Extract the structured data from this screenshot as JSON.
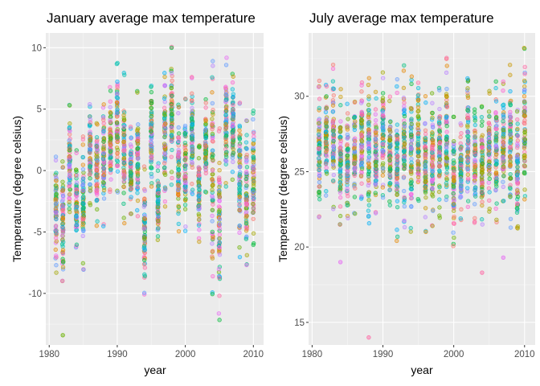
{
  "chart_data": [
    {
      "type": "scatter",
      "title": "January average max temperature",
      "xlabel": "year",
      "ylabel": "Temperature (degree celsius)",
      "xlim": [
        1979.5,
        2011.5
      ],
      "ylim": [
        -14.2,
        11.2
      ],
      "x_ticks": [
        1980,
        1990,
        2000,
        2010
      ],
      "y_ticks": [
        -10,
        -5,
        0,
        5,
        10
      ],
      "grid": true,
      "background": "#ebebeb",
      "point_alpha": 0.35,
      "years": [
        1981,
        1982,
        1983,
        1984,
        1985,
        1986,
        1987,
        1988,
        1989,
        1990,
        1991,
        1992,
        1993,
        1994,
        1995,
        1996,
        1997,
        1998,
        1999,
        2000,
        2001,
        2002,
        2003,
        2004,
        2005,
        2006,
        2007,
        2008,
        2009,
        2010
      ],
      "year_ranges": [
        [
          -8.5,
          1.5
        ],
        [
          -9.2,
          0.8
        ],
        [
          -3.5,
          5.5
        ],
        [
          -6.8,
          1.8
        ],
        [
          -8.3,
          3.0
        ],
        [
          -3.0,
          5.6
        ],
        [
          -4.5,
          4.0
        ],
        [
          -4.6,
          5.6
        ],
        [
          -2.0,
          7.0
        ],
        [
          -1.8,
          9.1
        ],
        [
          -4.6,
          8.0
        ],
        [
          -4.0,
          3.6
        ],
        [
          -4.0,
          6.8
        ],
        [
          -10.6,
          0.8
        ],
        [
          -1.5,
          7.3
        ],
        [
          -5.8,
          0.8
        ],
        [
          -3.0,
          8.0
        ],
        [
          -1.5,
          10.2
        ],
        [
          -5.0,
          6.0
        ],
        [
          -5.0,
          6.0
        ],
        [
          -2.0,
          8.0
        ],
        [
          -6.2,
          2.5
        ],
        [
          -1.8,
          5.8
        ],
        [
          -10.8,
          9.8
        ],
        [
          -12.2,
          4.0
        ],
        [
          -1.8,
          9.2
        ],
        [
          -0.8,
          8.0
        ],
        [
          -7.2,
          6.0
        ],
        [
          -8.0,
          4.8
        ],
        [
          -6.5,
          5.2
        ]
      ],
      "outliers": [
        {
          "x": 1982,
          "y": -13.4
        }
      ]
    },
    {
      "type": "scatter",
      "title": "July average max temperature",
      "xlabel": "year",
      "ylabel": "Temperature (degree celsius)",
      "xlim": [
        1979.5,
        2011.5
      ],
      "ylim": [
        13.5,
        34.2
      ],
      "x_ticks": [
        1980,
        1990,
        2000,
        2010
      ],
      "y_ticks": [
        15,
        20,
        25,
        30
      ],
      "grid": true,
      "background": "#ebebeb",
      "point_alpha": 0.35,
      "years": [
        1981,
        1982,
        1983,
        1984,
        1985,
        1986,
        1987,
        1988,
        1989,
        1990,
        1991,
        1992,
        1993,
        1994,
        1995,
        1996,
        1997,
        1998,
        1999,
        2000,
        2001,
        2002,
        2003,
        2004,
        2005,
        2006,
        2007,
        2008,
        2009,
        2010
      ],
      "year_ranges": [
        [
          21.5,
          31.2
        ],
        [
          23.2,
          31.0
        ],
        [
          22.5,
          32.4
        ],
        [
          21.0,
          30.5
        ],
        [
          21.5,
          29.5
        ],
        [
          22.0,
          30.2
        ],
        [
          23.0,
          31.2
        ],
        [
          21.5,
          31.5
        ],
        [
          22.0,
          30.5
        ],
        [
          23.0,
          31.8
        ],
        [
          22.5,
          30.0
        ],
        [
          20.3,
          31.5
        ],
        [
          21.2,
          32.4
        ],
        [
          21.0,
          31.5
        ],
        [
          22.5,
          31.0
        ],
        [
          20.8,
          30.2
        ],
        [
          21.2,
          30.2
        ],
        [
          21.5,
          31.0
        ],
        [
          22.6,
          32.8
        ],
        [
          19.8,
          28.8
        ],
        [
          21.5,
          28.5
        ],
        [
          22.5,
          31.6
        ],
        [
          21.5,
          29.4
        ],
        [
          21.3,
          29.5
        ],
        [
          22.0,
          30.8
        ],
        [
          21.5,
          31.0
        ],
        [
          22.5,
          31.2
        ],
        [
          21.2,
          32.3
        ],
        [
          20.6,
          29.5
        ],
        [
          22.5,
          33.5
        ]
      ],
      "outliers": [
        {
          "x": 1984,
          "y": 19.0
        },
        {
          "x": 1988,
          "y": 14.0
        },
        {
          "x": 2004,
          "y": 18.3
        },
        {
          "x": 2007,
          "y": 19.3
        }
      ]
    }
  ],
  "colors": {
    "panel_background": "#ebebeb",
    "grid": "#ffffff",
    "palette": [
      "#F8766D",
      "#E58700",
      "#C99800",
      "#A3A500",
      "#6BB100",
      "#00BA38",
      "#00BF7D",
      "#00C0AF",
      "#00BCD8",
      "#00B0F6",
      "#619CFF",
      "#B983FF",
      "#E76BF3",
      "#FD61D1",
      "#FF67A4"
    ]
  }
}
